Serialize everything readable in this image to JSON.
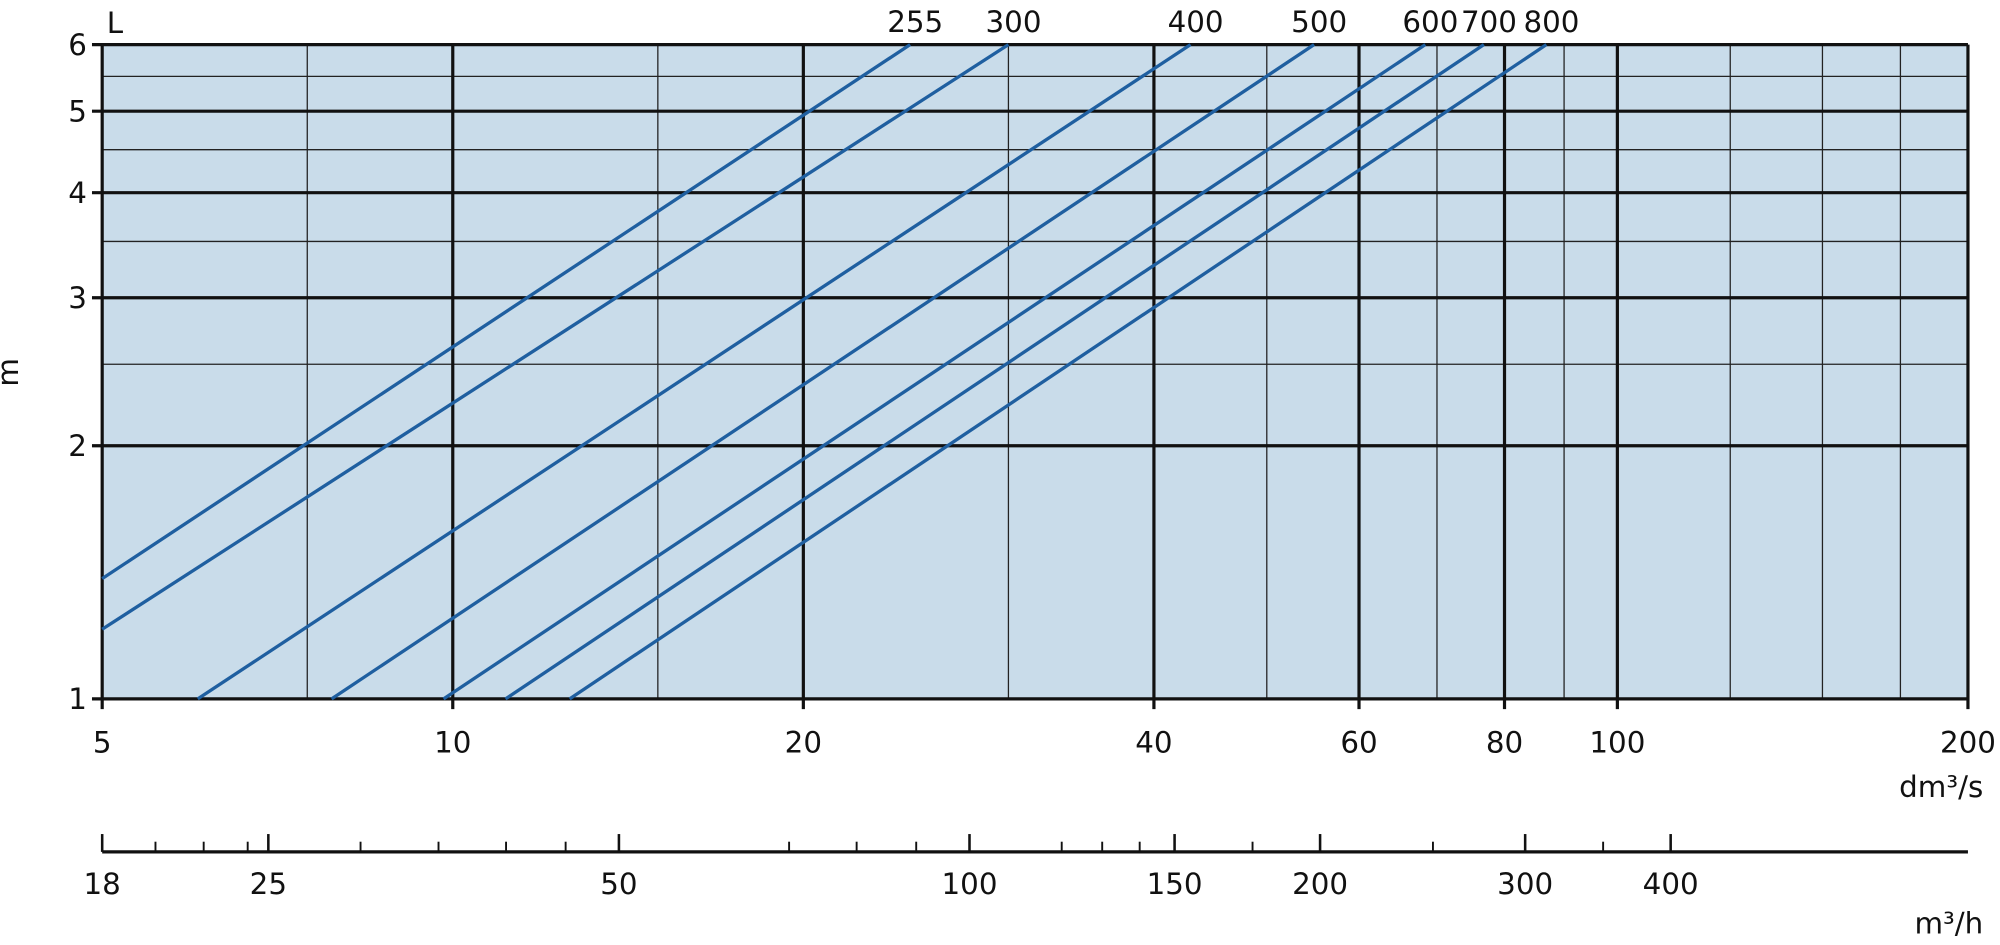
{
  "chart_data": {
    "type": "line",
    "y_label": "m",
    "x_label": "dm³/s",
    "x2_label": "m³/h",
    "legend_title": "L",
    "log_x": true,
    "log_y": true,
    "grid": true,
    "background": "#c9dcea",
    "xlim": [
      5,
      200
    ],
    "xticks": [
      5,
      10,
      20,
      40,
      60,
      80,
      100,
      200
    ],
    "xminor": [
      7.5,
      15,
      30,
      50,
      70,
      90,
      125,
      150,
      175
    ],
    "ylim": [
      1,
      6
    ],
    "yticks": [
      1,
      2,
      3,
      4,
      5,
      6
    ],
    "yminor": [
      2.5,
      3.5,
      4.5,
      5.5
    ],
    "x2lim": [
      18,
      720
    ],
    "x2ticks": [
      18,
      25,
      50,
      100,
      150,
      200,
      300,
      400
    ],
    "x2minor": [
      20,
      22,
      24,
      30,
      35,
      40,
      45,
      70,
      80,
      90,
      120,
      130,
      140,
      175,
      250,
      350
    ],
    "series": [
      {
        "name": "255",
        "color": "#1f5fa0",
        "x": [
          5,
          24.7
        ],
        "values": [
          1.39,
          6
        ]
      },
      {
        "name": "300",
        "color": "#1f5fa0",
        "x": [
          5,
          30
        ],
        "values": [
          1.21,
          6
        ]
      },
      {
        "name": "400",
        "color": "#1f5fa0",
        "x": [
          6.04,
          43
        ],
        "values": [
          1,
          6
        ]
      },
      {
        "name": "500",
        "color": "#1f5fa0",
        "x": [
          7.87,
          54.9
        ],
        "values": [
          1,
          6
        ]
      },
      {
        "name": "600",
        "color": "#1f5fa0",
        "x": [
          9.82,
          68.4
        ],
        "values": [
          1,
          6
        ]
      },
      {
        "name": "700",
        "color": "#1f5fa0",
        "x": [
          11.1,
          76.8
        ],
        "values": [
          1,
          6
        ]
      },
      {
        "name": "800",
        "color": "#1f5fa0",
        "x": [
          12.6,
          86.9
        ],
        "values": [
          1,
          6
        ]
      }
    ]
  }
}
